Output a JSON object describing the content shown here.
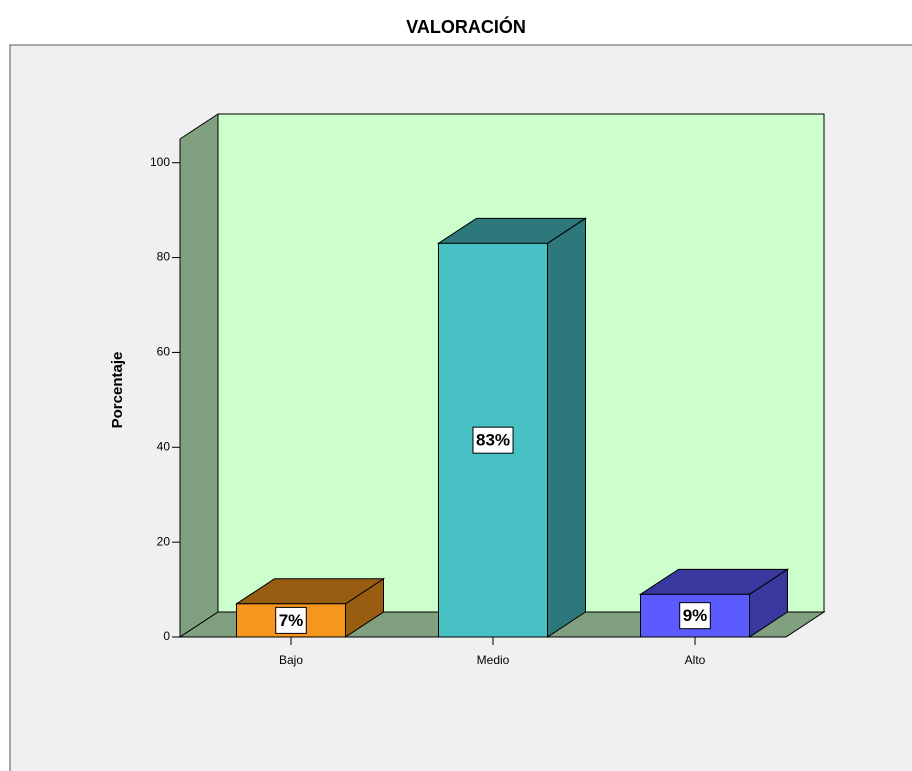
{
  "chart_data": {
    "type": "bar3d",
    "title": "VALORACIÓN",
    "y_label": "Porcentaje",
    "categories": [
      "Bajo",
      "Medio",
      "Alto"
    ],
    "values": [
      7,
      83,
      9
    ],
    "value_labels": [
      "7%",
      "83%",
      "9%"
    ],
    "colors": [
      "#f7961d",
      "#47c1c4",
      "#5b5bff"
    ],
    "ylim": [
      0,
      105
    ],
    "yticks": [
      0,
      20,
      40,
      60,
      80,
      100
    ]
  }
}
